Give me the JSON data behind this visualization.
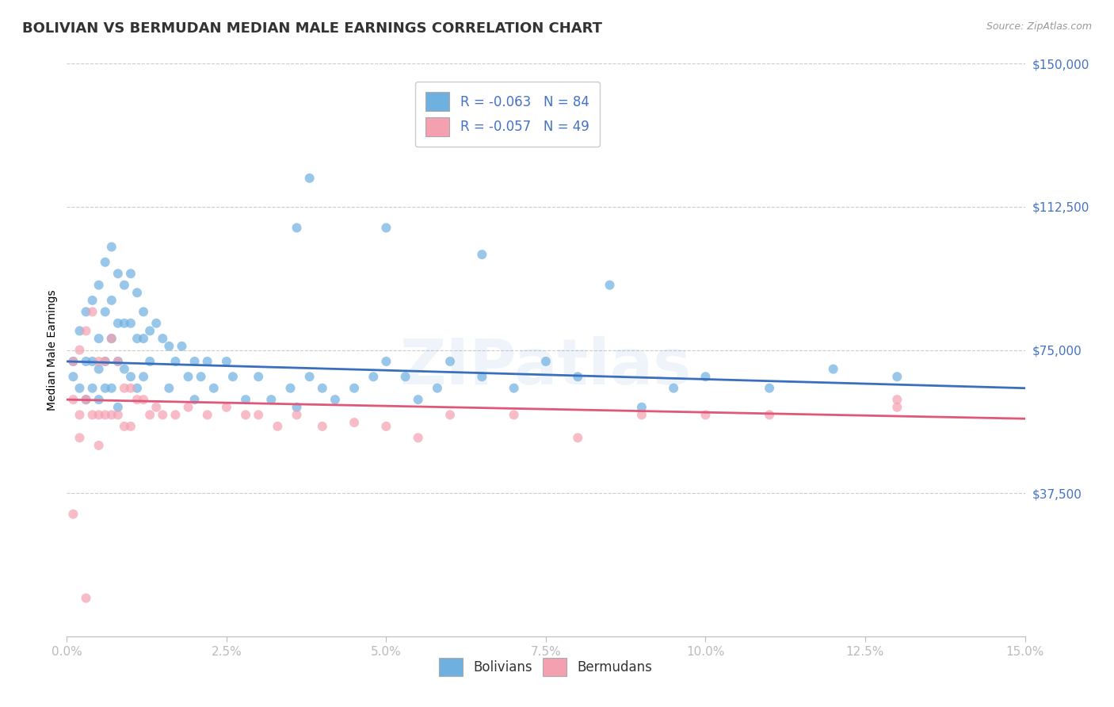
{
  "title": "BOLIVIAN VS BERMUDAN MEDIAN MALE EARNINGS CORRELATION CHART",
  "source_text": "Source: ZipAtlas.com",
  "ylabel": "Median Male Earnings",
  "xlim": [
    0.0,
    0.15
  ],
  "ylim": [
    0,
    150000
  ],
  "yticks": [
    0,
    37500,
    75000,
    112500,
    150000
  ],
  "ytick_labels": [
    "",
    "$37,500",
    "$75,000",
    "$112,500",
    "$150,000"
  ],
  "xtick_labels": [
    "0.0%",
    "2.5%",
    "5.0%",
    "7.5%",
    "10.0%",
    "12.5%",
    "15.0%"
  ],
  "xticks": [
    0.0,
    0.025,
    0.05,
    0.075,
    0.1,
    0.125,
    0.15
  ],
  "bolivians_R": -0.063,
  "bolivians_N": 84,
  "bermudans_R": -0.057,
  "bermudans_N": 49,
  "blue_color": "#6EB0E0",
  "pink_color": "#F4A0B0",
  "trend_blue": "#3A6FBF",
  "trend_pink": "#E05878",
  "watermark": "ZIPatlas",
  "title_fontsize": 13,
  "axis_label_fontsize": 10,
  "tick_fontsize": 11,
  "legend_fontsize": 12,
  "bolivians_x": [
    0.001,
    0.001,
    0.002,
    0.002,
    0.003,
    0.003,
    0.003,
    0.004,
    0.004,
    0.004,
    0.005,
    0.005,
    0.005,
    0.005,
    0.006,
    0.006,
    0.006,
    0.006,
    0.007,
    0.007,
    0.007,
    0.007,
    0.008,
    0.008,
    0.008,
    0.008,
    0.009,
    0.009,
    0.009,
    0.01,
    0.01,
    0.01,
    0.011,
    0.011,
    0.011,
    0.012,
    0.012,
    0.012,
    0.013,
    0.013,
    0.014,
    0.015,
    0.016,
    0.016,
    0.017,
    0.018,
    0.019,
    0.02,
    0.02,
    0.021,
    0.022,
    0.023,
    0.025,
    0.026,
    0.028,
    0.03,
    0.032,
    0.035,
    0.036,
    0.038,
    0.04,
    0.042,
    0.045,
    0.048,
    0.05,
    0.053,
    0.055,
    0.058,
    0.06,
    0.065,
    0.07,
    0.075,
    0.08,
    0.09,
    0.095,
    0.1,
    0.11,
    0.12,
    0.13,
    0.038,
    0.036,
    0.05,
    0.065,
    0.085
  ],
  "bolivians_y": [
    68000,
    72000,
    80000,
    65000,
    85000,
    72000,
    62000,
    88000,
    72000,
    65000,
    92000,
    78000,
    70000,
    62000,
    98000,
    85000,
    72000,
    65000,
    102000,
    88000,
    78000,
    65000,
    95000,
    82000,
    72000,
    60000,
    92000,
    82000,
    70000,
    95000,
    82000,
    68000,
    90000,
    78000,
    65000,
    85000,
    78000,
    68000,
    80000,
    72000,
    82000,
    78000,
    76000,
    65000,
    72000,
    76000,
    68000,
    72000,
    62000,
    68000,
    72000,
    65000,
    72000,
    68000,
    62000,
    68000,
    62000,
    65000,
    60000,
    68000,
    65000,
    62000,
    65000,
    68000,
    72000,
    68000,
    62000,
    65000,
    72000,
    68000,
    65000,
    72000,
    68000,
    60000,
    65000,
    68000,
    65000,
    70000,
    68000,
    120000,
    107000,
    107000,
    100000,
    92000
  ],
  "bermudans_x": [
    0.001,
    0.001,
    0.002,
    0.002,
    0.003,
    0.003,
    0.004,
    0.004,
    0.005,
    0.005,
    0.005,
    0.006,
    0.006,
    0.007,
    0.007,
    0.008,
    0.008,
    0.009,
    0.009,
    0.01,
    0.01,
    0.011,
    0.012,
    0.013,
    0.014,
    0.015,
    0.017,
    0.019,
    0.022,
    0.025,
    0.028,
    0.03,
    0.033,
    0.036,
    0.04,
    0.045,
    0.05,
    0.055,
    0.06,
    0.07,
    0.08,
    0.09,
    0.1,
    0.11,
    0.13,
    0.001,
    0.002,
    0.13,
    0.003
  ],
  "bermudans_y": [
    72000,
    62000,
    75000,
    58000,
    80000,
    62000,
    85000,
    58000,
    72000,
    58000,
    50000,
    72000,
    58000,
    78000,
    58000,
    72000,
    58000,
    65000,
    55000,
    65000,
    55000,
    62000,
    62000,
    58000,
    60000,
    58000,
    58000,
    60000,
    58000,
    60000,
    58000,
    58000,
    55000,
    58000,
    55000,
    56000,
    55000,
    52000,
    58000,
    58000,
    52000,
    58000,
    58000,
    58000,
    62000,
    32000,
    52000,
    60000,
    10000
  ]
}
